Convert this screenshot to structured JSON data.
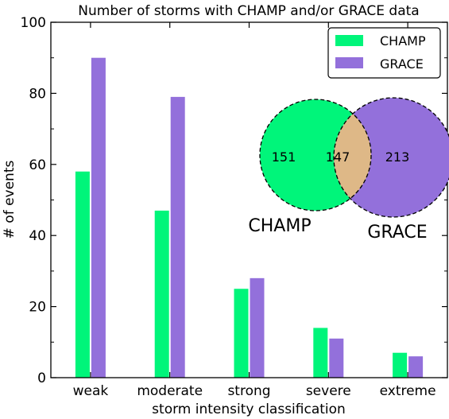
{
  "chart_data": {
    "type": "bar",
    "title": "Number of storms with CHAMP and/or GRACE data",
    "xlabel": "storm intensity classification",
    "ylabel": "# of events",
    "ylim": [
      0,
      100
    ],
    "yticks": [
      "0",
      "20",
      "40",
      "60",
      "80",
      "100"
    ],
    "grid": false,
    "legend_position": "top-right",
    "categories": [
      "weak",
      "moderate",
      "strong",
      "severe",
      "extreme"
    ],
    "series": [
      {
        "name": "CHAMP",
        "color": "#00f57a",
        "values": [
          58,
          47,
          25,
          14,
          7
        ]
      },
      {
        "name": "GRACE",
        "color": "#9370db",
        "values": [
          90,
          79,
          28,
          11,
          6
        ]
      }
    ],
    "venn": {
      "labels": [
        "CHAMP",
        "GRACE"
      ],
      "only_a": "151",
      "both": "147",
      "only_b": "213",
      "colors": {
        "a": "#00f57a",
        "b": "#9370db",
        "overlap": "#deb887"
      }
    }
  }
}
